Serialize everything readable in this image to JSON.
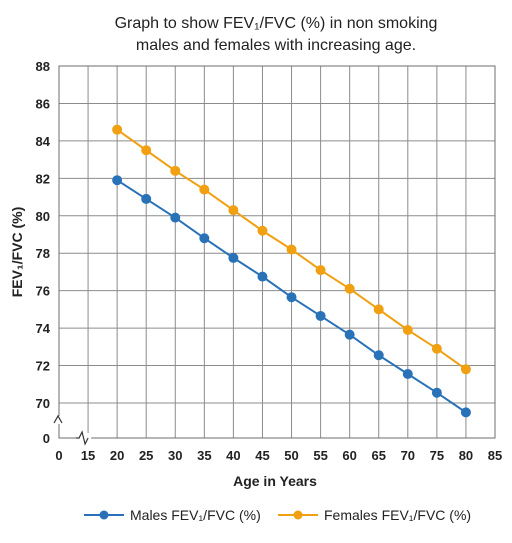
{
  "chart_data": {
    "type": "line",
    "title_lines": [
      "Graph to show FEV₁/FVC (%) in non smoking",
      "males and females with increasing age."
    ],
    "xlabel": "Age in Years",
    "ylabel": "FEV₁/FVC (%)",
    "x_ticks": [
      "0",
      "15",
      "20",
      "25",
      "30",
      "35",
      "40",
      "45",
      "50",
      "55",
      "60",
      "65",
      "70",
      "75",
      "80",
      "85"
    ],
    "y_ticks": [
      "70",
      "72",
      "74",
      "76",
      "78",
      "80",
      "82",
      "84",
      "86",
      "88"
    ],
    "y_zero_label": "0",
    "axis_break": true,
    "ylim": [
      70,
      88
    ],
    "xlim": [
      15,
      85
    ],
    "grid": true,
    "legend_position": "bottom",
    "x": [
      20,
      25,
      30,
      35,
      40,
      45,
      50,
      55,
      60,
      65,
      70,
      75,
      80
    ],
    "series": [
      {
        "name": "Males FEV₁/FVC (%)",
        "color": "#2a72b8",
        "values": [
          81.9,
          80.9,
          79.9,
          78.8,
          77.75,
          76.75,
          75.65,
          74.65,
          73.65,
          72.55,
          71.55,
          70.55,
          69.5
        ]
      },
      {
        "name": "Females FEV₁/FVC (%)",
        "color": "#f0a011",
        "values": [
          84.6,
          83.5,
          82.4,
          81.4,
          80.3,
          79.2,
          78.2,
          77.1,
          76.1,
          75.0,
          73.9,
          72.9,
          71.8
        ]
      }
    ]
  }
}
